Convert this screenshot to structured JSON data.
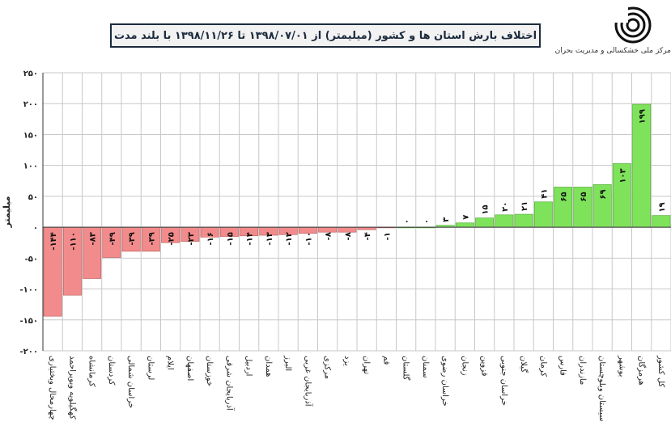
{
  "header": {
    "org_name": "مرکز ملی خشکسالی و مدیریت بحران"
  },
  "colors": {
    "negative": "#f28b8b",
    "positive": "#7fe25b",
    "grid": "#c8c8c8",
    "axis": "#333333"
  },
  "chart_data": {
    "type": "bar",
    "title": "اختلاف بارش استان ها و کشور (میلیمتر) از ۱۳۹۸/۰۷/۰۱ تا ۱۳۹۸/۱۱/۲۶ با بلند مدت",
    "ylabel": "میلیمتر",
    "xlabel": "",
    "ylim": [
      -200,
      250
    ],
    "yticks": [
      250,
      200,
      150,
      100,
      50,
      0,
      -50,
      -100,
      -150,
      -200
    ],
    "ytick_labels": [
      "۲۵۰",
      "۲۰۰",
      "۱۵۰",
      "۱۰۰",
      "۵۰",
      "۰",
      "-۵۰",
      "-۱۰۰",
      "-۱۵۰",
      "-۲۰۰"
    ],
    "grid": true,
    "categories": [
      "چهارمحال وبختیاری",
      "کهگیلویه وبویراحمد",
      "کرمانشاه",
      "کردستان",
      "خراسان شمالی",
      "لرستان",
      "ایلام",
      "اصفهان",
      "خوزستان",
      "آذربایجان شرقی",
      "اردبیل",
      "همدان",
      "البرز",
      "آذربایجان غربی",
      "مرکزی",
      "یزد",
      "تهران",
      "قم",
      "گلستان",
      "سمنان",
      "خراسان رضوی",
      "زنجان",
      "قزوین",
      "خراسان جنوبی",
      "گیلان",
      "کرمان",
      "فارس",
      "مازندران",
      "سیستان وبلوچستان",
      "بوشهر",
      "هرمزگان",
      "کل کشور"
    ],
    "values": [
      -144,
      -110,
      -83,
      -49,
      -39,
      -39,
      -25,
      -23,
      -16,
      -15,
      -14,
      -13,
      -12,
      -10,
      -8,
      -8,
      -4,
      -1,
      0,
      0,
      3,
      7,
      15,
      20,
      21,
      41,
      65,
      65,
      69,
      103,
      199,
      19
    ],
    "data_labels": [
      "-۱۴۴",
      "-۱۱۰",
      "-۸۳",
      "-۴۹",
      "-۳۹",
      "-۳۹",
      "-۲۵",
      "-۲۳",
      "-۱۶",
      "-۱۵",
      "-۱۴",
      "-۱۳",
      "-۱۲",
      "-۱۰",
      "-۸",
      "-۸",
      "-۴",
      "-۱",
      "۰",
      "۰",
      "۳",
      "۷",
      "۱۵",
      "۲۰",
      "۲۱",
      "۴۱",
      "۶۵",
      "۶۵",
      "۶۹",
      "۱۰۳",
      "۱۹۹",
      "۱۹"
    ]
  }
}
